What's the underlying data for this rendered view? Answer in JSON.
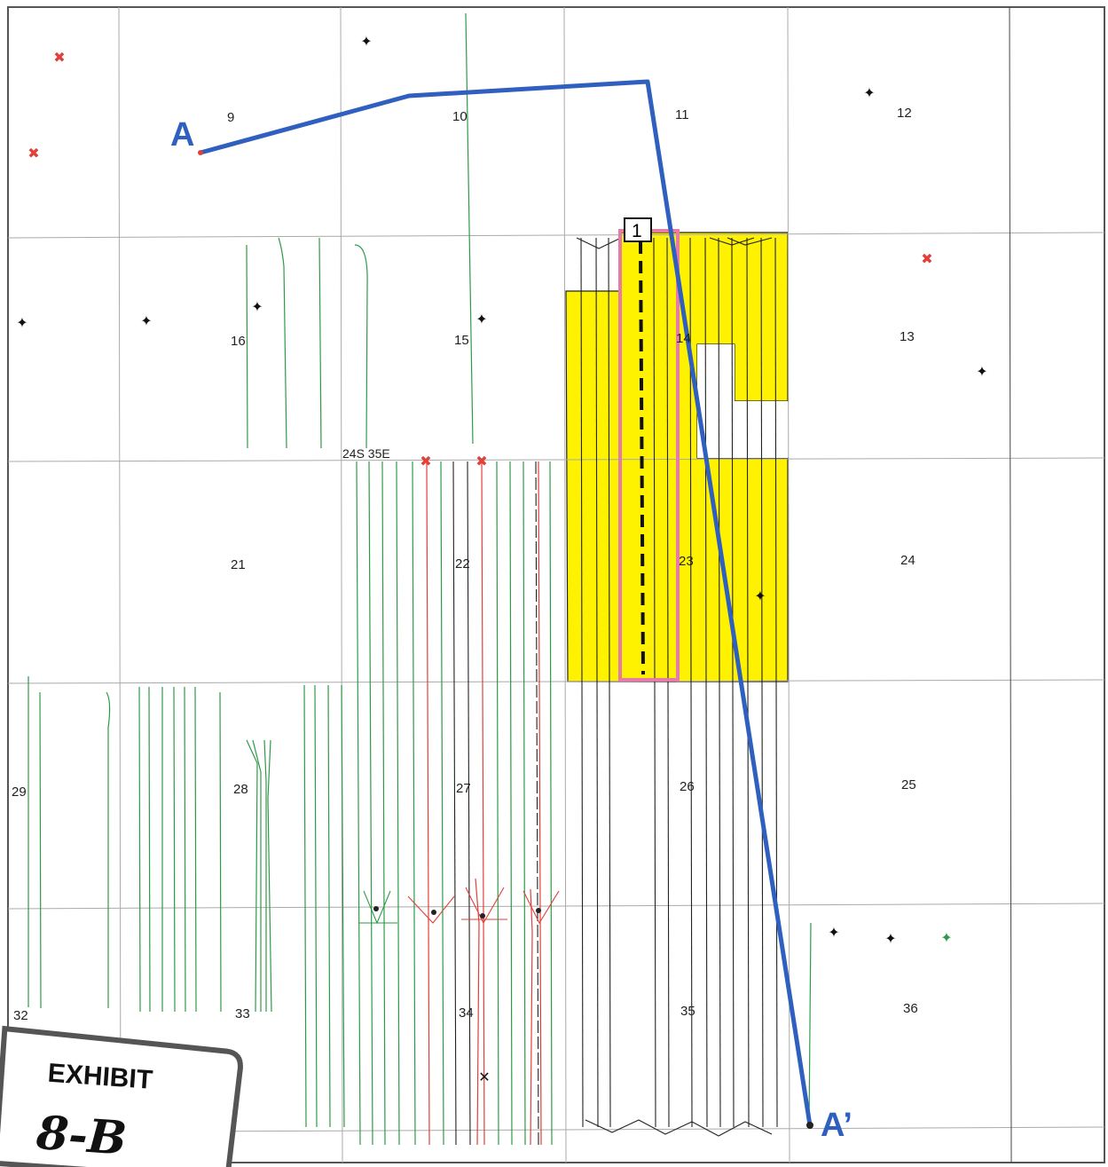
{
  "map": {
    "sections": [
      {
        "label": "9"
      },
      {
        "label": "10"
      },
      {
        "label": "11"
      },
      {
        "label": "12"
      },
      {
        "label": "16"
      },
      {
        "label": "15"
      },
      {
        "label": "14"
      },
      {
        "label": "13"
      },
      {
        "label": "21"
      },
      {
        "label": "22"
      },
      {
        "label": "23"
      },
      {
        "label": "24"
      },
      {
        "label": "29"
      },
      {
        "label": "28"
      },
      {
        "label": "27"
      },
      {
        "label": "26"
      },
      {
        "label": "25"
      },
      {
        "label": "32"
      },
      {
        "label": "33"
      },
      {
        "label": "34"
      },
      {
        "label": "35"
      },
      {
        "label": "36"
      }
    ],
    "township_label": "24S 35E",
    "cross_section": {
      "start_label": "A",
      "end_label": "A’",
      "color": "#2f5fbf"
    },
    "well_tag": "1",
    "colors": {
      "lease_fill": "#fff200",
      "unit_outline": "#e87aa8",
      "green_wells": "#2e9a48",
      "red_wells": "#e0403a",
      "black_wells": "#222222",
      "dry_hole_marker": "#e0403a"
    }
  },
  "exhibit": {
    "title": "EXHIBIT",
    "number": "8-B"
  }
}
